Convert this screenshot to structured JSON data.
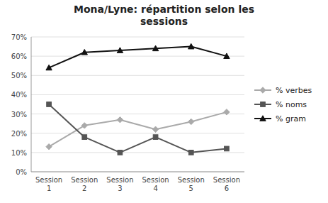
{
  "chart_data": {
    "type": "line",
    "title": "Mona/Lyne: répartition selon les\nsessions",
    "categories": [
      "Session\n1",
      "Session\n2",
      "Session\n3",
      "Session\n4",
      "Session\n5",
      "Session\n6"
    ],
    "series": [
      {
        "name": "% verbes",
        "color": "#aaaaaa",
        "marker": "diamond",
        "values": [
          0.13,
          0.24,
          0.27,
          0.22,
          0.26,
          0.31
        ]
      },
      {
        "name": "% noms",
        "color": "#555555",
        "marker": "square",
        "values": [
          0.35,
          0.18,
          0.1,
          0.18,
          0.1,
          0.12
        ]
      },
      {
        "name": "% gram",
        "color": "#111111",
        "marker": "triangle",
        "values": [
          0.54,
          0.62,
          0.63,
          0.64,
          0.65,
          0.6
        ]
      }
    ],
    "ylim": [
      0,
      0.7
    ],
    "yticks": [
      {
        "value": 0,
        "label": "0%"
      },
      {
        "value": 0.1,
        "label": "10%"
      },
      {
        "value": 0.2,
        "label": "20%"
      },
      {
        "value": 0.3,
        "label": "30%"
      },
      {
        "value": 0.4,
        "label": "40%"
      },
      {
        "value": 0.5,
        "label": "50%"
      },
      {
        "value": 0.6,
        "label": "60%"
      },
      {
        "value": 0.7,
        "label": "70%"
      }
    ],
    "grid": true,
    "legend": "right"
  }
}
